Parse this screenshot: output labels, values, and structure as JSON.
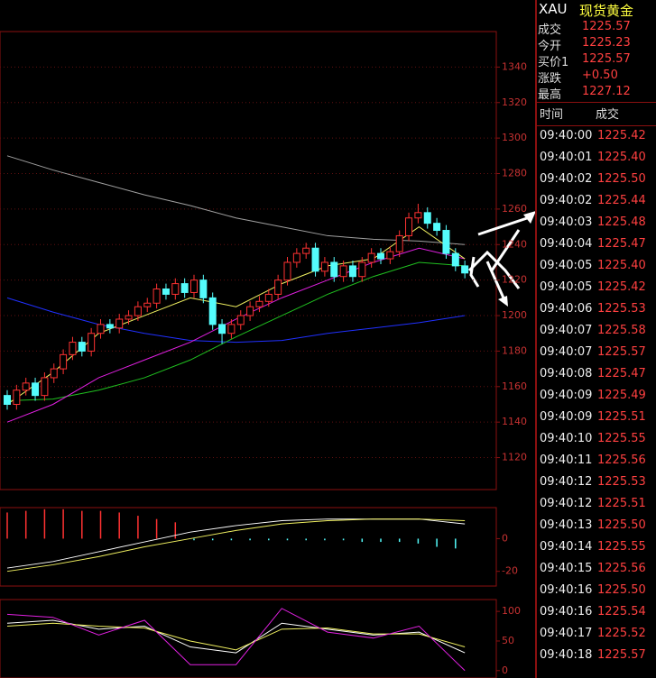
{
  "chart_data": [
    {
      "type": "candlestick",
      "ylim": [
        1102,
        1360
      ],
      "yticks": [
        1120,
        1140,
        1160,
        1180,
        1200,
        1220,
        1240,
        1260,
        1280,
        1300,
        1320,
        1340
      ],
      "grid": true,
      "up_color": "#ff3232",
      "down_color": "#54fcfc",
      "open": [
        1155,
        1150,
        1158,
        1162,
        1155,
        1165,
        1170,
        1178,
        1185,
        1180,
        1190,
        1195,
        1193,
        1198,
        1200,
        1205,
        1207,
        1215,
        1212,
        1218,
        1213,
        1220,
        1210,
        1195,
        1190,
        1195,
        1200,
        1205,
        1208,
        1212,
        1220,
        1230,
        1235,
        1238,
        1225,
        1230,
        1222,
        1228,
        1222,
        1230,
        1235,
        1232,
        1236,
        1245,
        1255,
        1258,
        1252,
        1248,
        1235,
        1228
      ],
      "high": [
        1158,
        1161,
        1165,
        1165,
        1168,
        1173,
        1181,
        1188,
        1188,
        1193,
        1198,
        1198,
        1201,
        1203,
        1208,
        1210,
        1218,
        1218,
        1221,
        1221,
        1223,
        1223,
        1213,
        1198,
        1198,
        1203,
        1208,
        1211,
        1215,
        1223,
        1233,
        1238,
        1241,
        1241,
        1233,
        1233,
        1231,
        1231,
        1233,
        1238,
        1238,
        1239,
        1248,
        1258,
        1263,
        1261,
        1255,
        1251,
        1238,
        1231
      ],
      "low": [
        1147,
        1147,
        1155,
        1152,
        1152,
        1162,
        1167,
        1175,
        1177,
        1177,
        1187,
        1190,
        1190,
        1195,
        1197,
        1202,
        1204,
        1209,
        1209,
        1210,
        1210,
        1207,
        1192,
        1184,
        1187,
        1192,
        1197,
        1202,
        1205,
        1209,
        1217,
        1227,
        1232,
        1222,
        1222,
        1219,
        1219,
        1219,
        1219,
        1227,
        1229,
        1229,
        1233,
        1242,
        1252,
        1249,
        1245,
        1232,
        1225,
        1221
      ],
      "close": [
        1150,
        1158,
        1162,
        1155,
        1165,
        1170,
        1178,
        1185,
        1180,
        1190,
        1195,
        1193,
        1198,
        1200,
        1205,
        1207,
        1215,
        1212,
        1218,
        1213,
        1220,
        1210,
        1195,
        1190,
        1195,
        1200,
        1205,
        1208,
        1212,
        1220,
        1230,
        1235,
        1238,
        1225,
        1230,
        1222,
        1228,
        1222,
        1230,
        1235,
        1232,
        1236,
        1245,
        1255,
        1258,
        1252,
        1248,
        1235,
        1228,
        1224
      ],
      "lines": [
        {
          "color": "#a0a0a0",
          "values": [
            1290,
            1282,
            1275,
            1268,
            1262,
            1255,
            1250,
            1245,
            1243,
            1242,
            1240
          ]
        },
        {
          "color": "#2030ff",
          "values": [
            1210,
            1202,
            1195,
            1190,
            1186,
            1185,
            1186,
            1190,
            1193,
            1196,
            1200
          ]
        },
        {
          "color": "#20c020",
          "values": [
            1152,
            1153,
            1158,
            1165,
            1175,
            1188,
            1200,
            1212,
            1222,
            1230,
            1228
          ]
        },
        {
          "color": "#e020e0",
          "values": [
            1140,
            1150,
            1165,
            1175,
            1185,
            1198,
            1210,
            1220,
            1230,
            1238,
            1232
          ]
        },
        {
          "color": "#f0f060",
          "values": [
            1150,
            1168,
            1190,
            1200,
            1210,
            1205,
            1218,
            1228,
            1232,
            1250,
            1232
          ]
        }
      ]
    },
    {
      "type": "macd",
      "ylim": [
        -29,
        19
      ],
      "yticks": [
        0,
        -20
      ],
      "values": [
        16,
        17,
        18,
        18,
        17,
        17,
        16,
        14,
        12,
        10,
        -1,
        -1,
        -1,
        -1,
        -1,
        -1,
        -1,
        -1,
        -1,
        -2,
        -2,
        -2,
        -3,
        -5,
        -6
      ],
      "lines": [
        {
          "color": "#ffffff",
          "values": [
            -18,
            -14,
            -8,
            -2,
            4,
            8,
            11,
            12,
            12,
            12,
            9
          ]
        },
        {
          "color": "#f0f060",
          "values": [
            -20,
            -16,
            -11,
            -5,
            0,
            5,
            9,
            11,
            12,
            12,
            11
          ]
        }
      ]
    },
    {
      "type": "kdj",
      "ylim": [
        -12.5,
        120
      ],
      "yticks": [
        0,
        50,
        100
      ],
      "lines": [
        {
          "color": "#ffffff",
          "values": [
            80,
            85,
            70,
            75,
            40,
            30,
            80,
            70,
            60,
            65,
            30
          ]
        },
        {
          "color": "#f0f060",
          "values": [
            75,
            80,
            75,
            72,
            50,
            35,
            70,
            72,
            62,
            62,
            40
          ]
        },
        {
          "color": "#e020e0",
          "values": [
            95,
            90,
            60,
            85,
            10,
            10,
            105,
            65,
            55,
            75,
            0
          ]
        }
      ]
    }
  ],
  "header": {
    "symbol": "XAU",
    "name": "现货黄金"
  },
  "quote": [
    [
      "成交",
      "1225.57"
    ],
    [
      "今开",
      "1225.23"
    ],
    [
      "买价1",
      "1225.57"
    ],
    [
      "涨跌",
      "+0.50"
    ],
    [
      "最高",
      "1227.12"
    ]
  ],
  "ticks_header": [
    "时间",
    "成交"
  ],
  "ticks": [
    [
      "09:40:00",
      "1225.42"
    ],
    [
      "09:40:01",
      "1225.40"
    ],
    [
      "09:40:02",
      "1225.50"
    ],
    [
      "09:40:02",
      "1225.44"
    ],
    [
      "09:40:03",
      "1225.48"
    ],
    [
      "09:40:04",
      "1225.47"
    ],
    [
      "09:40:05",
      "1225.40"
    ],
    [
      "09:40:05",
      "1225.42"
    ],
    [
      "09:40:06",
      "1225.53"
    ],
    [
      "09:40:07",
      "1225.58"
    ],
    [
      "09:40:07",
      "1225.57"
    ],
    [
      "09:40:08",
      "1225.47"
    ],
    [
      "09:40:09",
      "1225.49"
    ],
    [
      "09:40:09",
      "1225.51"
    ],
    [
      "09:40:10",
      "1225.55"
    ],
    [
      "09:40:11",
      "1225.56"
    ],
    [
      "09:40:12",
      "1225.53"
    ],
    [
      "09:40:12",
      "1225.51"
    ],
    [
      "09:40:13",
      "1225.50"
    ],
    [
      "09:40:14",
      "1225.55"
    ],
    [
      "09:40:15",
      "1225.56"
    ],
    [
      "09:40:16",
      "1225.50"
    ],
    [
      "09:40:16",
      "1225.54"
    ],
    [
      "09:40:17",
      "1225.52"
    ],
    [
      "09:40:18",
      "1225.57"
    ]
  ]
}
